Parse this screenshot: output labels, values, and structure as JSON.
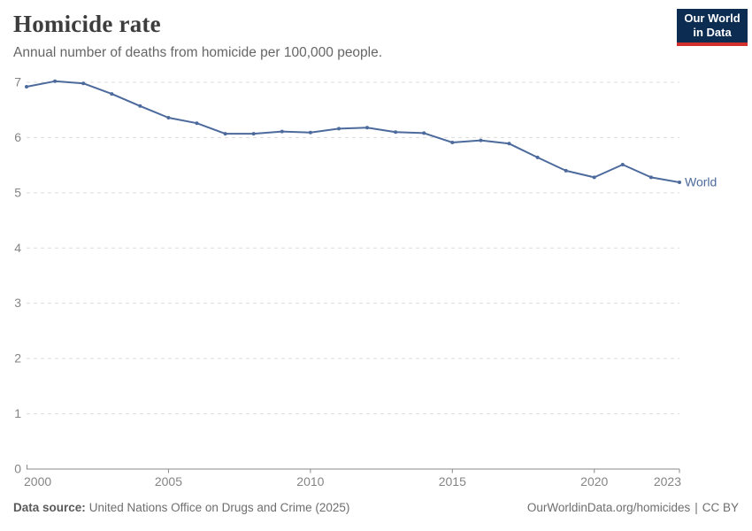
{
  "header": {
    "title": "Homicide rate",
    "subtitle": "Annual number of deaths from homicide per 100,000 people.",
    "logo": {
      "line1": "Our World",
      "line2": "in Data",
      "bg_color": "#0c2c52",
      "accent_color": "#d2302c"
    }
  },
  "chart_data": {
    "type": "line",
    "title": "Homicide rate",
    "subtitle": "Annual number of deaths from homicide per 100,000 people.",
    "x": [
      2000,
      2001,
      2002,
      2003,
      2004,
      2005,
      2006,
      2007,
      2008,
      2009,
      2010,
      2011,
      2012,
      2013,
      2014,
      2015,
      2016,
      2017,
      2018,
      2019,
      2020,
      2021,
      2022,
      2023
    ],
    "series": [
      {
        "name": "World",
        "color": "#4c6a9c",
        "values": [
          6.92,
          7.02,
          6.98,
          6.79,
          6.57,
          6.36,
          6.26,
          6.07,
          6.07,
          6.11,
          6.09,
          6.16,
          6.18,
          6.1,
          6.08,
          5.91,
          5.95,
          5.89,
          5.64,
          5.4,
          5.28,
          5.51,
          5.28,
          5.19
        ]
      }
    ],
    "xlabel": "",
    "ylabel": "",
    "ylim": [
      0,
      7
    ],
    "yticks": [
      0,
      1,
      2,
      3,
      4,
      5,
      6,
      7
    ],
    "xticks": [
      2000,
      2005,
      2010,
      2015,
      2020,
      2023
    ],
    "grid": "horizontal-dashed",
    "legend": "end-of-line-label"
  },
  "colors": {
    "grid": "#dcdcdc",
    "axis": "#8a8a8a",
    "tick_label": "#858585",
    "series_blue": "#4c6a9c"
  },
  "footer": {
    "source_label": "Data source:",
    "source_text": "United Nations Office on Drugs and Crime (2025)",
    "link_text": "OurWorldinData.org/homicides",
    "divider": "|",
    "license": "CC BY"
  }
}
